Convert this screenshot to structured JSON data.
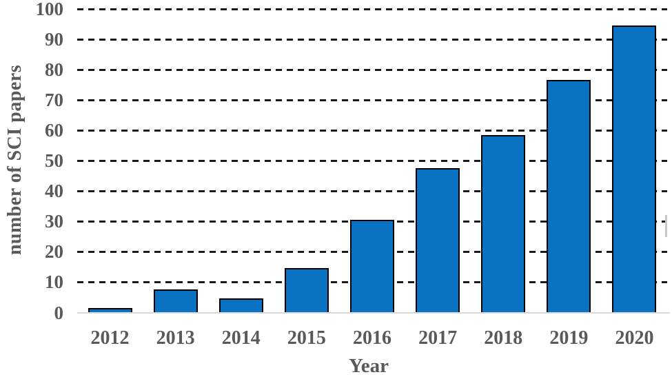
{
  "chart_data": {
    "type": "bar",
    "title": "",
    "xlabel": "Year",
    "ylabel": "number of SCI papers",
    "categories": [
      "2012",
      "2013",
      "2014",
      "2015",
      "2016",
      "2017",
      "2018",
      "2019",
      "2020"
    ],
    "values": [
      1,
      7,
      4,
      14,
      30,
      47,
      58,
      76,
      94
    ],
    "ylim": [
      0,
      100
    ],
    "yticks": [
      0,
      10,
      20,
      30,
      40,
      50,
      60,
      70,
      80,
      90,
      100
    ],
    "grid": "horizontal-dashed",
    "legend": "none",
    "colors": {
      "bar_fill": "#0a72c2",
      "bar_border": "#000000",
      "gridline": "#1a1a1a",
      "baseline": "#d9d9d9",
      "label_text": "#595959",
      "artifact": "#c9c9c9"
    }
  }
}
